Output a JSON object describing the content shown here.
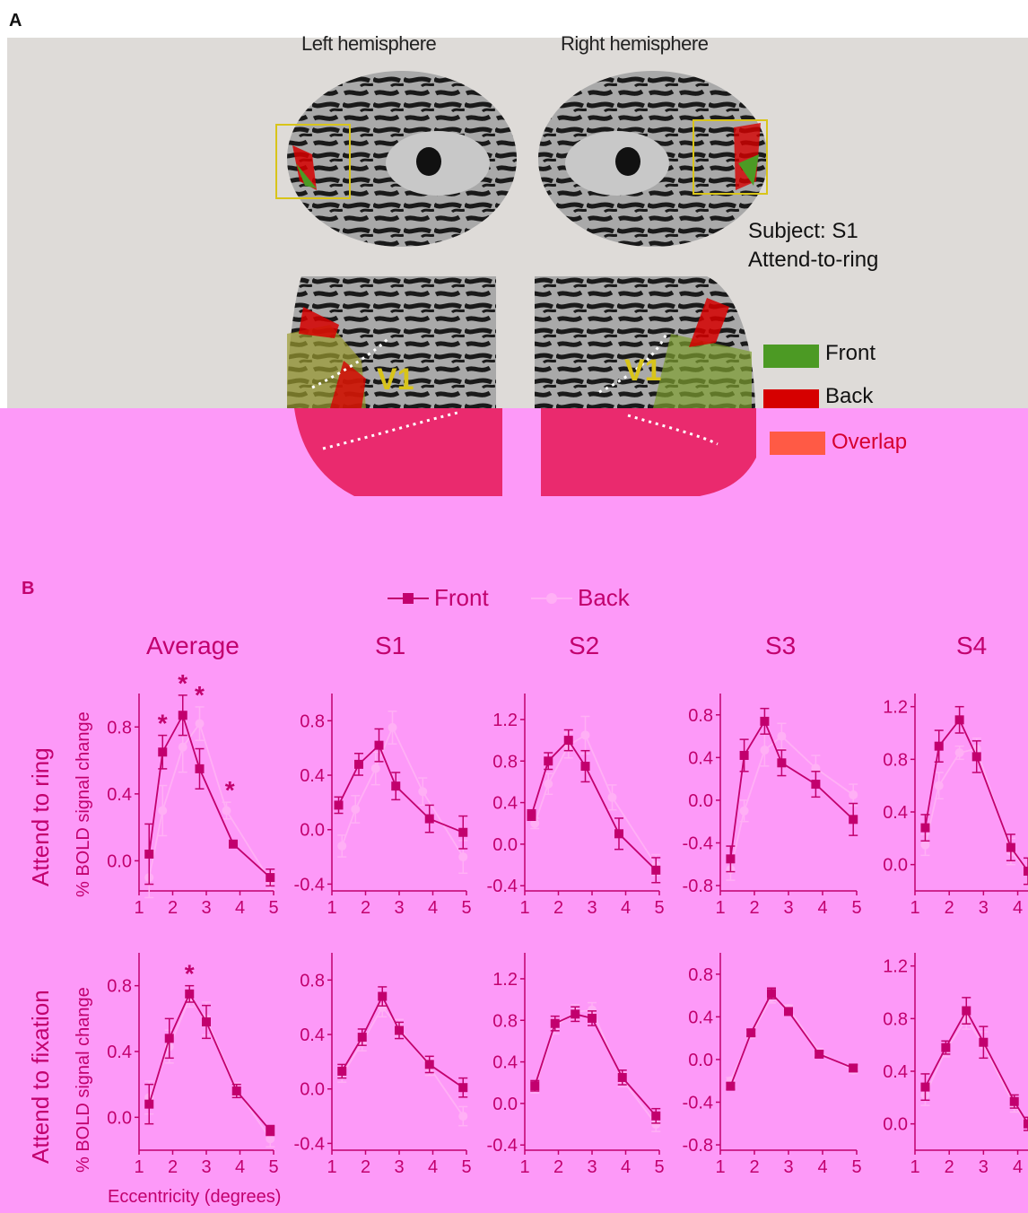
{
  "panelA": {
    "letter": "A",
    "left_hemisphere": "Left hemisphere",
    "right_hemisphere": "Right hemisphere",
    "subject_line1": "Subject: S1",
    "subject_line2": "Attend-to-ring",
    "v1_label": "V1",
    "legend": [
      {
        "label": "Front",
        "color": "#4c9a24"
      },
      {
        "label": "Back",
        "color": "#d60000"
      },
      {
        "label": "Overlap",
        "color": "#ff5a45"
      }
    ]
  },
  "panelB": {
    "letter": "B",
    "legend": [
      {
        "label": "Front",
        "color": "#c2006e",
        "marker": "square"
      },
      {
        "label": "Back",
        "color": "#ffb0f5",
        "marker": "circle"
      }
    ],
    "columns": [
      "Average",
      "S1",
      "S2",
      "S3",
      "S4"
    ],
    "rows": [
      "Attend to ring",
      "Attend to fixation"
    ],
    "ylabel": "% BOLD signal change",
    "xlabel": "Eccentricity (degrees)",
    "significance_marker": "*",
    "colors": {
      "front": "#c2006e",
      "back": "#ffb0f5",
      "axis": "#c2006e",
      "panel_bg": "#dedbd8",
      "pink_bg": "#fd99f8"
    }
  },
  "chart_data": [
    {
      "type": "line",
      "title": "Average",
      "row": "Attend to ring",
      "ylim": [
        -0.18,
        1.0
      ],
      "yticks": [
        "0.0",
        "0.4",
        "0.8"
      ],
      "xticks": [
        "1",
        "2",
        "3",
        "4",
        "5"
      ],
      "xlim": [
        1,
        5
      ],
      "series": [
        {
          "name": "Front",
          "x": [
            1.3,
            1.7,
            2.3,
            2.8,
            3.8,
            4.9
          ],
          "y": [
            0.04,
            0.65,
            0.87,
            0.55,
            0.1,
            -0.1
          ],
          "err": [
            0.18,
            0.1,
            0.12,
            0.12,
            0.02,
            0.05
          ]
        },
        {
          "name": "Back",
          "x": [
            1.3,
            1.7,
            2.3,
            2.8,
            3.6,
            4.9
          ],
          "y": [
            -0.1,
            0.3,
            0.68,
            0.82,
            0.3,
            -0.12
          ],
          "err": [
            0.12,
            0.15,
            0.15,
            0.1,
            0.05,
            0.05
          ]
        }
      ],
      "significance_x": [
        1.7,
        2.3,
        2.8,
        3.7
      ]
    },
    {
      "type": "line",
      "title": "S1",
      "row": "Attend to ring",
      "ylim": [
        -0.45,
        1.0
      ],
      "yticks": [
        "-0.4",
        "0.0",
        "0.4",
        "0.8"
      ],
      "xticks": [
        "1",
        "2",
        "3",
        "4",
        "5"
      ],
      "xlim": [
        1,
        5
      ],
      "series": [
        {
          "name": "Front",
          "x": [
            1.2,
            1.8,
            2.4,
            2.9,
            3.9,
            4.9
          ],
          "y": [
            0.18,
            0.48,
            0.62,
            0.32,
            0.08,
            -0.02
          ],
          "err": [
            0.06,
            0.08,
            0.12,
            0.1,
            0.1,
            0.12
          ]
        },
        {
          "name": "Back",
          "x": [
            1.3,
            1.7,
            2.3,
            2.8,
            3.7,
            4.9
          ],
          "y": [
            -0.12,
            0.15,
            0.45,
            0.75,
            0.28,
            -0.2
          ],
          "err": [
            0.08,
            0.1,
            0.12,
            0.12,
            0.1,
            0.12
          ]
        }
      ]
    },
    {
      "type": "line",
      "title": "S2",
      "row": "Attend to ring",
      "ylim": [
        -0.45,
        1.45
      ],
      "yticks": [
        "-0.4",
        "0.0",
        "0.4",
        "0.8",
        "1.2"
      ],
      "xticks": [
        "1",
        "2",
        "3",
        "4",
        "5"
      ],
      "xlim": [
        1,
        5
      ],
      "series": [
        {
          "name": "Front",
          "x": [
            1.2,
            1.7,
            2.3,
            2.8,
            3.8,
            4.9
          ],
          "y": [
            0.28,
            0.8,
            1.0,
            0.75,
            0.1,
            -0.25
          ],
          "err": [
            0.05,
            0.08,
            0.1,
            0.15,
            0.15,
            0.12
          ]
        },
        {
          "name": "Back",
          "x": [
            1.3,
            1.7,
            2.3,
            2.8,
            3.6,
            4.9
          ],
          "y": [
            0.2,
            0.58,
            0.95,
            1.05,
            0.45,
            -0.2
          ],
          "err": [
            0.05,
            0.1,
            0.12,
            0.18,
            0.12,
            0.1
          ]
        }
      ]
    },
    {
      "type": "line",
      "title": "S3",
      "row": "Attend to ring",
      "ylim": [
        -0.85,
        1.0
      ],
      "yticks": [
        "-0.8",
        "-0.4",
        "0.0",
        "0.4",
        "0.8"
      ],
      "xticks": [
        "1",
        "2",
        "3",
        "4",
        "5"
      ],
      "xlim": [
        1,
        5
      ],
      "series": [
        {
          "name": "Front",
          "x": [
            1.3,
            1.7,
            2.3,
            2.8,
            3.8,
            4.9
          ],
          "y": [
            -0.55,
            0.42,
            0.74,
            0.35,
            0.15,
            -0.18
          ],
          "err": [
            0.12,
            0.15,
            0.12,
            0.12,
            0.12,
            0.15
          ]
        },
        {
          "name": "Back",
          "x": [
            1.3,
            1.7,
            2.3,
            2.8,
            3.8,
            4.9
          ],
          "y": [
            -0.65,
            -0.1,
            0.47,
            0.6,
            0.3,
            0.05
          ],
          "err": [
            0.1,
            0.1,
            0.15,
            0.12,
            0.12,
            0.1
          ]
        }
      ]
    },
    {
      "type": "line",
      "title": "S4",
      "row": "Attend to ring",
      "ylim": [
        -0.2,
        1.3
      ],
      "yticks": [
        "0.0",
        "0.4",
        "0.8",
        "1.2"
      ],
      "xticks": [
        "1",
        "2",
        "3",
        "4"
      ],
      "xlim": [
        1,
        4.3
      ],
      "series": [
        {
          "name": "Front",
          "x": [
            1.3,
            1.7,
            2.3,
            2.8,
            3.8,
            4.3
          ],
          "y": [
            0.28,
            0.9,
            1.1,
            0.82,
            0.13,
            -0.05
          ],
          "err": [
            0.1,
            0.12,
            0.1,
            0.12,
            0.1,
            0.1
          ]
        },
        {
          "name": "Back",
          "x": [
            1.3,
            1.7,
            2.3,
            2.8,
            3.8,
            4.3
          ],
          "y": [
            0.15,
            0.6,
            0.85,
            0.88,
            0.1,
            -0.05
          ],
          "err": [
            0.08,
            0.1,
            0.05,
            0.08,
            0.1,
            0.1
          ]
        }
      ]
    },
    {
      "type": "line",
      "title": "",
      "row": "Attend to fixation",
      "ylim": [
        -0.2,
        1.0
      ],
      "yticks": [
        "0.0",
        "0.4",
        "0.8"
      ],
      "xticks": [
        "1",
        "2",
        "3",
        "4",
        "5"
      ],
      "xlim": [
        1,
        5
      ],
      "series": [
        {
          "name": "Front",
          "x": [
            1.3,
            1.9,
            2.5,
            3.0,
            3.9,
            4.9
          ],
          "y": [
            0.08,
            0.48,
            0.75,
            0.58,
            0.16,
            -0.08
          ],
          "err": [
            0.12,
            0.12,
            0.05,
            0.1,
            0.04,
            0.03
          ]
        },
        {
          "name": "Back",
          "x": [
            1.3,
            1.9,
            2.5,
            3.0,
            3.9,
            4.9
          ],
          "y": [
            0.12,
            0.43,
            0.72,
            0.6,
            0.17,
            -0.13
          ],
          "err": [
            0.1,
            0.1,
            0.05,
            0.1,
            0.04,
            0.05
          ]
        }
      ],
      "significance_x": [
        2.5
      ]
    },
    {
      "type": "line",
      "title": "",
      "row": "Attend to fixation",
      "ylim": [
        -0.45,
        1.0
      ],
      "yticks": [
        "-0.4",
        "0.0",
        "0.4",
        "0.8"
      ],
      "xticks": [
        "1",
        "2",
        "3",
        "4",
        "5"
      ],
      "xlim": [
        1,
        5
      ],
      "series": [
        {
          "name": "Front",
          "x": [
            1.3,
            1.9,
            2.5,
            3.0,
            3.9,
            4.9
          ],
          "y": [
            0.13,
            0.38,
            0.68,
            0.43,
            0.18,
            0.01
          ],
          "err": [
            0.05,
            0.06,
            0.07,
            0.06,
            0.06,
            0.07
          ]
        },
        {
          "name": "Back",
          "x": [
            1.3,
            1.9,
            2.5,
            3.0,
            3.9,
            4.9
          ],
          "y": [
            0.1,
            0.34,
            0.6,
            0.45,
            0.16,
            -0.2
          ],
          "err": [
            0.05,
            0.06,
            0.07,
            0.06,
            0.06,
            0.07
          ]
        }
      ]
    },
    {
      "type": "line",
      "title": "",
      "row": "Attend to fixation",
      "ylim": [
        -0.45,
        1.45
      ],
      "yticks": [
        "-0.4",
        "0.0",
        "0.4",
        "0.8",
        "1.2"
      ],
      "xticks": [
        "1",
        "2",
        "3",
        "4",
        "5"
      ],
      "xlim": [
        1,
        5
      ],
      "series": [
        {
          "name": "Front",
          "x": [
            1.3,
            1.9,
            2.5,
            3.0,
            3.9,
            4.9
          ],
          "y": [
            0.17,
            0.77,
            0.86,
            0.82,
            0.25,
            -0.12
          ],
          "err": [
            0.05,
            0.07,
            0.07,
            0.07,
            0.07,
            0.07
          ]
        },
        {
          "name": "Back",
          "x": [
            1.3,
            1.9,
            2.5,
            3.0,
            3.9,
            4.9
          ],
          "y": [
            0.15,
            0.74,
            0.88,
            0.9,
            0.23,
            -0.2
          ],
          "err": [
            0.05,
            0.07,
            0.07,
            0.07,
            0.07,
            0.07
          ]
        }
      ]
    },
    {
      "type": "line",
      "title": "",
      "row": "Attend to fixation",
      "ylim": [
        -0.85,
        1.0
      ],
      "yticks": [
        "-0.8",
        "-0.4",
        "0.0",
        "0.4",
        "0.8"
      ],
      "xticks": [
        "1",
        "2",
        "3",
        "4",
        "5"
      ],
      "xlim": [
        1,
        5
      ],
      "series": [
        {
          "name": "Front",
          "x": [
            1.3,
            1.9,
            2.5,
            3.0,
            3.9,
            4.9
          ],
          "y": [
            -0.25,
            0.25,
            0.62,
            0.45,
            0.05,
            -0.08
          ],
          "err": [
            0.03,
            0.03,
            0.05,
            0.03,
            0.03,
            0.03
          ]
        },
        {
          "name": "Back",
          "x": [
            1.3,
            1.9,
            2.5,
            3.0,
            3.9,
            4.9
          ],
          "y": [
            -0.2,
            0.23,
            0.58,
            0.48,
            0.07,
            -0.1
          ],
          "err": [
            0.03,
            0.03,
            0.05,
            0.03,
            0.03,
            0.03
          ]
        }
      ]
    },
    {
      "type": "line",
      "title": "",
      "row": "Attend to fixation",
      "ylim": [
        -0.2,
        1.3
      ],
      "yticks": [
        "0.0",
        "0.4",
        "0.8",
        "1.2"
      ],
      "xticks": [
        "1",
        "2",
        "3",
        "4"
      ],
      "xlim": [
        1,
        4.3
      ],
      "series": [
        {
          "name": "Front",
          "x": [
            1.3,
            1.9,
            2.5,
            3.0,
            3.9,
            4.3
          ],
          "y": [
            0.28,
            0.58,
            0.86,
            0.62,
            0.17,
            0.0
          ],
          "err": [
            0.1,
            0.05,
            0.1,
            0.12,
            0.05,
            0.05
          ]
        },
        {
          "name": "Back",
          "x": [
            1.3,
            1.9,
            2.5,
            3.0,
            3.9,
            4.3
          ],
          "y": [
            0.22,
            0.56,
            0.8,
            0.6,
            0.14,
            0.0
          ],
          "err": [
            0.08,
            0.05,
            0.08,
            0.1,
            0.05,
            0.05
          ]
        }
      ]
    }
  ]
}
